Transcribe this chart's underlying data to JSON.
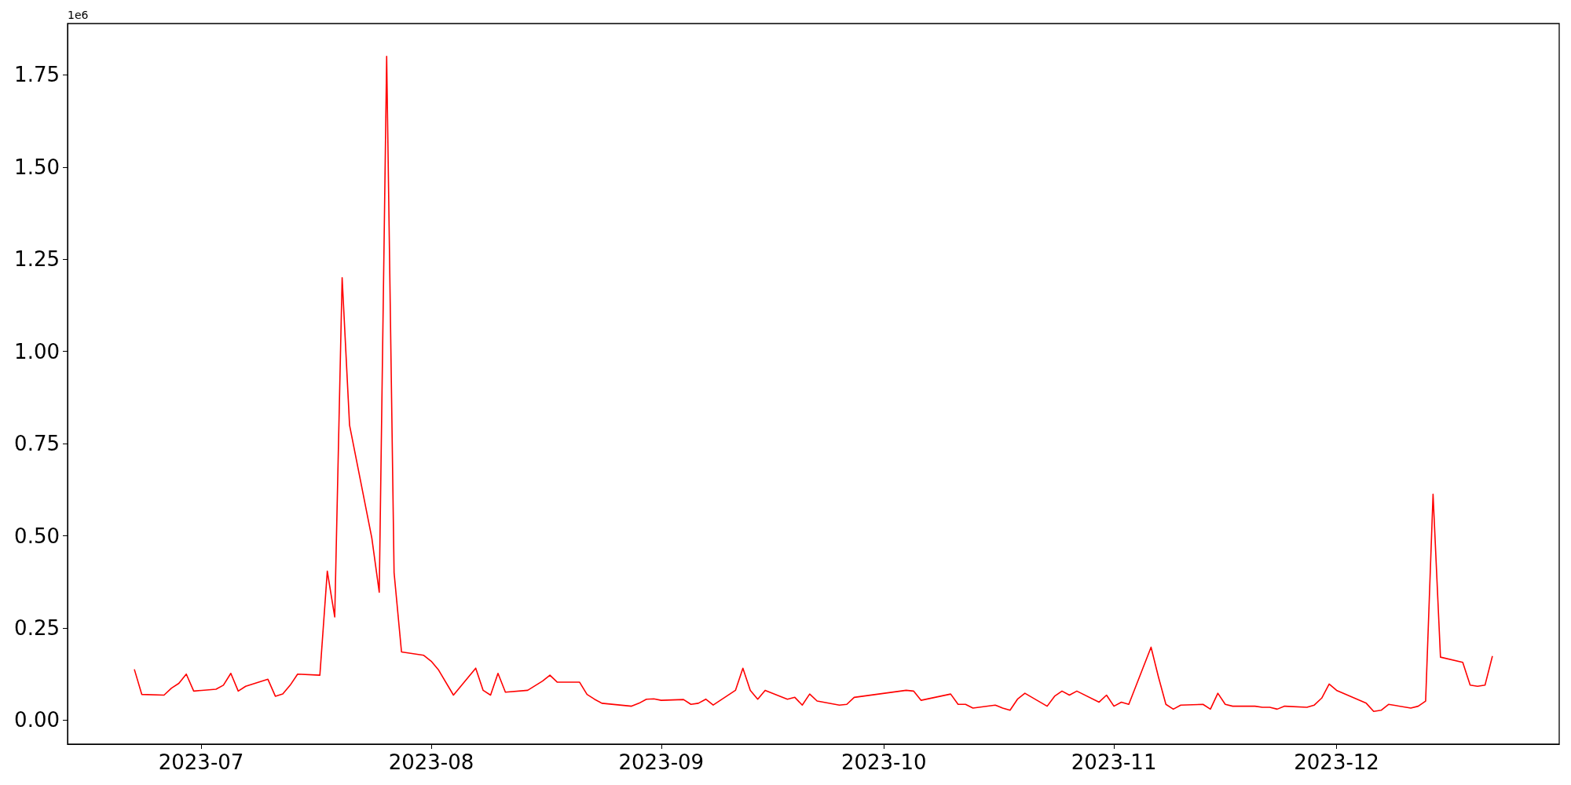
{
  "chart_data": {
    "type": "line",
    "annotations": [
      "1e6"
    ],
    "x": [
      "2023-06-22",
      "2023-06-23",
      "2023-06-26",
      "2023-06-27",
      "2023-06-28",
      "2023-06-29",
      "2023-06-30",
      "2023-07-03",
      "2023-07-04",
      "2023-07-05",
      "2023-07-06",
      "2023-07-07",
      "2023-07-10",
      "2023-07-11",
      "2023-07-12",
      "2023-07-13",
      "2023-07-14",
      "2023-07-17",
      "2023-07-18",
      "2023-07-19",
      "2023-07-20",
      "2023-07-21",
      "2023-07-24",
      "2023-07-25",
      "2023-07-26",
      "2023-07-27",
      "2023-07-28",
      "2023-07-31",
      "2023-08-01",
      "2023-08-02",
      "2023-08-04",
      "2023-08-07",
      "2023-08-08",
      "2023-08-09",
      "2023-08-10",
      "2023-08-11",
      "2023-08-14",
      "2023-08-16",
      "2023-08-17",
      "2023-08-18",
      "2023-08-21",
      "2023-08-22",
      "2023-08-23",
      "2023-08-24",
      "2023-08-28",
      "2023-08-29",
      "2023-08-30",
      "2023-08-31",
      "2023-09-01",
      "2023-09-04",
      "2023-09-05",
      "2023-09-06",
      "2023-09-07",
      "2023-09-08",
      "2023-09-11",
      "2023-09-12",
      "2023-09-13",
      "2023-09-14",
      "2023-09-15",
      "2023-09-18",
      "2023-09-19",
      "2023-09-20",
      "2023-09-21",
      "2023-09-22",
      "2023-09-25",
      "2023-09-26",
      "2023-09-27",
      "2023-10-04",
      "2023-10-05",
      "2023-10-06",
      "2023-10-10",
      "2023-10-11",
      "2023-10-12",
      "2023-10-13",
      "2023-10-16",
      "2023-10-17",
      "2023-10-18",
      "2023-10-19",
      "2023-10-20",
      "2023-10-23",
      "2023-10-24",
      "2023-10-25",
      "2023-10-26",
      "2023-10-27",
      "2023-10-30",
      "2023-10-31",
      "2023-11-01",
      "2023-11-02",
      "2023-11-03",
      "2023-11-06",
      "2023-11-07",
      "2023-11-08",
      "2023-11-09",
      "2023-11-10",
      "2023-11-13",
      "2023-11-14",
      "2023-11-15",
      "2023-11-16",
      "2023-11-17",
      "2023-11-20",
      "2023-11-21",
      "2023-11-22",
      "2023-11-23",
      "2023-11-24",
      "2023-11-27",
      "2023-11-28",
      "2023-11-29",
      "2023-11-30",
      "2023-12-01",
      "2023-12-05",
      "2023-12-06",
      "2023-12-07",
      "2023-12-08",
      "2023-12-11",
      "2023-12-12",
      "2023-12-13",
      "2023-12-14",
      "2023-12-15",
      "2023-12-18",
      "2023-12-19",
      "2023-12-20",
      "2023-12-21",
      "2023-12-22"
    ],
    "series": [
      {
        "color": "#ff0000",
        "values": [
          0.138,
          0.07,
          0.068,
          0.087,
          0.1,
          0.125,
          0.079,
          0.084,
          0.095,
          0.127,
          0.079,
          0.092,
          0.111,
          0.065,
          0.071,
          0.095,
          0.125,
          0.122,
          0.404,
          0.28,
          1.2,
          0.8,
          0.494,
          0.347,
          1.8,
          0.4,
          0.185,
          0.176,
          0.16,
          0.136,
          0.068,
          0.141,
          0.081,
          0.068,
          0.127,
          0.076,
          0.081,
          0.106,
          0.122,
          0.103,
          0.103,
          0.07,
          0.057,
          0.046,
          0.038,
          0.046,
          0.057,
          0.058,
          0.054,
          0.056,
          0.043,
          0.046,
          0.057,
          0.041,
          0.081,
          0.141,
          0.081,
          0.057,
          0.081,
          0.057,
          0.062,
          0.041,
          0.071,
          0.052,
          0.041,
          0.043,
          0.062,
          0.081,
          0.079,
          0.054,
          0.071,
          0.043,
          0.043,
          0.033,
          0.041,
          0.033,
          0.027,
          0.057,
          0.073,
          0.038,
          0.065,
          0.079,
          0.068,
          0.079,
          0.049,
          0.068,
          0.038,
          0.049,
          0.043,
          0.198,
          0.117,
          0.043,
          0.03,
          0.041,
          0.043,
          0.03,
          0.073,
          0.043,
          0.038,
          0.038,
          0.035,
          0.035,
          0.03,
          0.038,
          0.035,
          0.041,
          0.06,
          0.098,
          0.081,
          0.046,
          0.024,
          0.027,
          0.043,
          0.033,
          0.038,
          0.052,
          0.613,
          0.171,
          0.157,
          0.095,
          0.092,
          0.095,
          0.174
        ]
      }
    ],
    "xlim": [
      "2023-06-13",
      "2023-12-31"
    ],
    "xticks": [
      {
        "value": "2023-07-01",
        "label": "2023-07"
      },
      {
        "value": "2023-08-01",
        "label": "2023-08"
      },
      {
        "value": "2023-09-01",
        "label": "2023-09"
      },
      {
        "value": "2023-10-01",
        "label": "2023-10"
      },
      {
        "value": "2023-11-01",
        "label": "2023-11"
      },
      {
        "value": "2023-12-01",
        "label": "2023-12"
      }
    ],
    "ylim": [
      -0.065,
      1.889
    ],
    "yticks": [
      {
        "value": 0,
        "label": "0.00"
      },
      0.25,
      {
        "value": 0.5,
        "label": "0.50"
      },
      0.75,
      {
        "value": 1,
        "label": "1.00"
      },
      1.25,
      {
        "value": 1.5,
        "label": "1.50"
      },
      1.75
    ],
    "grid": false,
    "marker": "none",
    "line_style": "solid"
  }
}
